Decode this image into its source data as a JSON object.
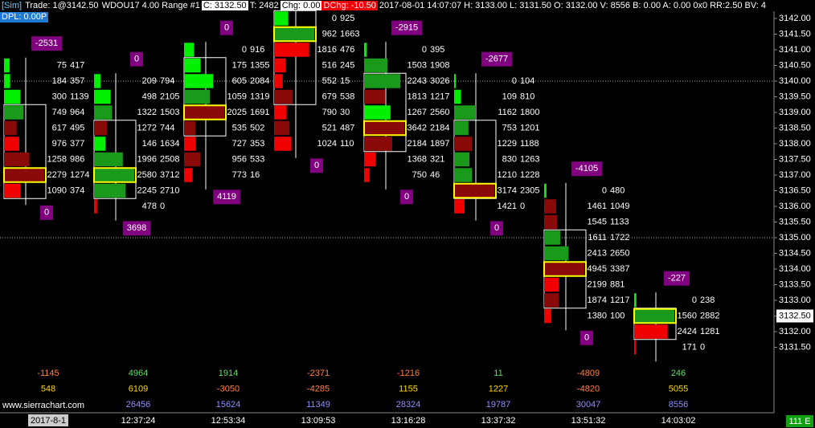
{
  "header": {
    "items": [
      "[Sim]",
      "Trade: 1@3142.50",
      "WDOU17  4.00 Range  #1",
      "C: 3132.50",
      "T: 2482",
      "Chg: 0.00",
      "DChg: -10.50",
      "2017-08-01 14:07:07 H: 3133.00 L: 3131.50 O: 3132.00 V: 8556 B: 0.00 A: 0.00 0x0 RR:2.50 BV: 4"
    ],
    "dpl": "DPL: 0.00P"
  },
  "price_axis": {
    "ticks": [
      {
        "value": 3142,
        "label": "3142.00"
      },
      {
        "value": 3141.5,
        "label": "3141.50"
      },
      {
        "value": 3141,
        "label": "3141.00"
      },
      {
        "value": 3140.5,
        "label": "3140.50"
      },
      {
        "value": 3140,
        "label": "3140.00"
      },
      {
        "value": 3139.5,
        "label": "3139.50"
      },
      {
        "value": 3139,
        "label": "3139.00"
      },
      {
        "value": 3138.5,
        "label": "3138.50"
      },
      {
        "value": 3138,
        "label": "3138.00"
      },
      {
        "value": 3137.5,
        "label": "3137.50"
      },
      {
        "value": 3137,
        "label": "3137.00"
      },
      {
        "value": 3136.5,
        "label": "3136.50"
      },
      {
        "value": 3136,
        "label": "3136.00"
      },
      {
        "value": 3135.5,
        "label": "3135.50"
      },
      {
        "value": 3135,
        "label": "3135.00"
      },
      {
        "value": 3134.5,
        "label": "3134.50"
      },
      {
        "value": 3134,
        "label": "3134.00"
      },
      {
        "value": 3133.5,
        "label": "3133.50"
      },
      {
        "value": 3133,
        "label": "3133.00"
      },
      {
        "value": 3132.5,
        "label": "3132.50"
      },
      {
        "value": 3132,
        "label": "3132.00"
      },
      {
        "value": 3131.5,
        "label": "3131.50"
      }
    ],
    "current": {
      "value": 3132.5,
      "label": "3132.50"
    },
    "gridlines": [
      3140,
      3135
    ]
  },
  "columns": [
    {
      "time": "2017-8-1",
      "top_price": 3140.5,
      "rows": [
        [
          75,
          417
        ],
        [
          184,
          357
        ],
        [
          300,
          1139
        ],
        [
          749,
          964
        ],
        [
          617,
          495
        ],
        [
          976,
          377
        ],
        [
          1258,
          986
        ],
        [
          2279,
          1274
        ],
        [
          1090,
          374
        ]
      ],
      "delta_top": -2531,
      "delta_bottom": 0,
      "footer": [
        -1145,
        548,
        null
      ]
    },
    {
      "time": "12:37:24",
      "top_price": 3140,
      "rows": [
        [
          209,
          794
        ],
        [
          498,
          2105
        ],
        [
          1322,
          1503
        ],
        [
          1272,
          744
        ],
        [
          146,
          1634
        ],
        [
          1996,
          2508
        ],
        [
          2580,
          3712
        ],
        [
          2245,
          2710
        ],
        [
          478,
          0
        ]
      ],
      "delta_top": 0,
      "delta_bottom": 3698,
      "footer": [
        4964,
        6109,
        26456
      ]
    },
    {
      "time": "12:53:34",
      "top_price": 3141,
      "rows": [
        [
          0,
          916
        ],
        [
          175,
          1355
        ],
        [
          605,
          2084
        ],
        [
          1059,
          1319
        ],
        [
          2025,
          1691
        ],
        [
          535,
          502
        ],
        [
          727,
          353
        ],
        [
          956,
          533
        ],
        [
          773,
          16
        ]
      ],
      "delta_top": 0,
      "delta_bottom": 4119,
      "footer": [
        1914,
        -3050,
        15624
      ]
    },
    {
      "time": "13:09:53",
      "top_price": 3142,
      "rows": [
        [
          0,
          925
        ],
        [
          962,
          1663
        ],
        [
          1816,
          476
        ],
        [
          516,
          245
        ],
        [
          552,
          15
        ],
        [
          679,
          538
        ],
        [
          790,
          30
        ],
        [
          521,
          487
        ],
        [
          1024,
          110
        ]
      ],
      "delta_top": null,
      "delta_bottom": 0,
      "footer": [
        -2371,
        -4285,
        11349
      ]
    },
    {
      "time": "13:16:28",
      "top_price": 3141,
      "rows": [
        [
          0,
          395
        ],
        [
          1503,
          1908
        ],
        [
          2243,
          3026
        ],
        [
          1813,
          1217
        ],
        [
          1267,
          2560
        ],
        [
          3642,
          2184
        ],
        [
          2184,
          1897
        ],
        [
          1368,
          321
        ],
        [
          750,
          46
        ]
      ],
      "delta_top": -2915,
      "delta_bottom": 0,
      "footer": [
        -1216,
        1155,
        28324
      ]
    },
    {
      "time": "13:37:32",
      "top_price": 3140,
      "rows": [
        [
          0,
          104
        ],
        [
          109,
          810
        ],
        [
          1162,
          1800
        ],
        [
          753,
          1201
        ],
        [
          1229,
          1188
        ],
        [
          830,
          1263
        ],
        [
          1210,
          1228
        ],
        [
          3174,
          2305
        ],
        [
          1421,
          0
        ]
      ],
      "delta_top": -2677,
      "delta_bottom": 0,
      "footer": [
        11,
        1227,
        19787
      ]
    },
    {
      "time": "13:51:32",
      "top_price": 3136.5,
      "rows": [
        [
          0,
          480
        ],
        [
          1461,
          1049
        ],
        [
          1545,
          1133
        ],
        [
          1611,
          1722
        ],
        [
          2413,
          2650
        ],
        [
          4945,
          3387
        ],
        [
          2199,
          881
        ],
        [
          1874,
          1217
        ],
        [
          1380,
          100
        ]
      ],
      "delta_top": -4105,
      "delta_bottom": 0,
      "footer": [
        -4809,
        -4820,
        30047
      ]
    },
    {
      "time": "14:03:02",
      "top_price": 3133,
      "rows": [
        [
          0,
          238
        ],
        [
          1560,
          2882
        ],
        [
          2424,
          1281
        ],
        [
          171,
          0
        ]
      ],
      "delta_top": -227,
      "delta_bottom": null,
      "footer": [
        246,
        5055,
        8556
      ]
    }
  ],
  "watermark": "www.sierrachart.com",
  "status": "111 E"
}
